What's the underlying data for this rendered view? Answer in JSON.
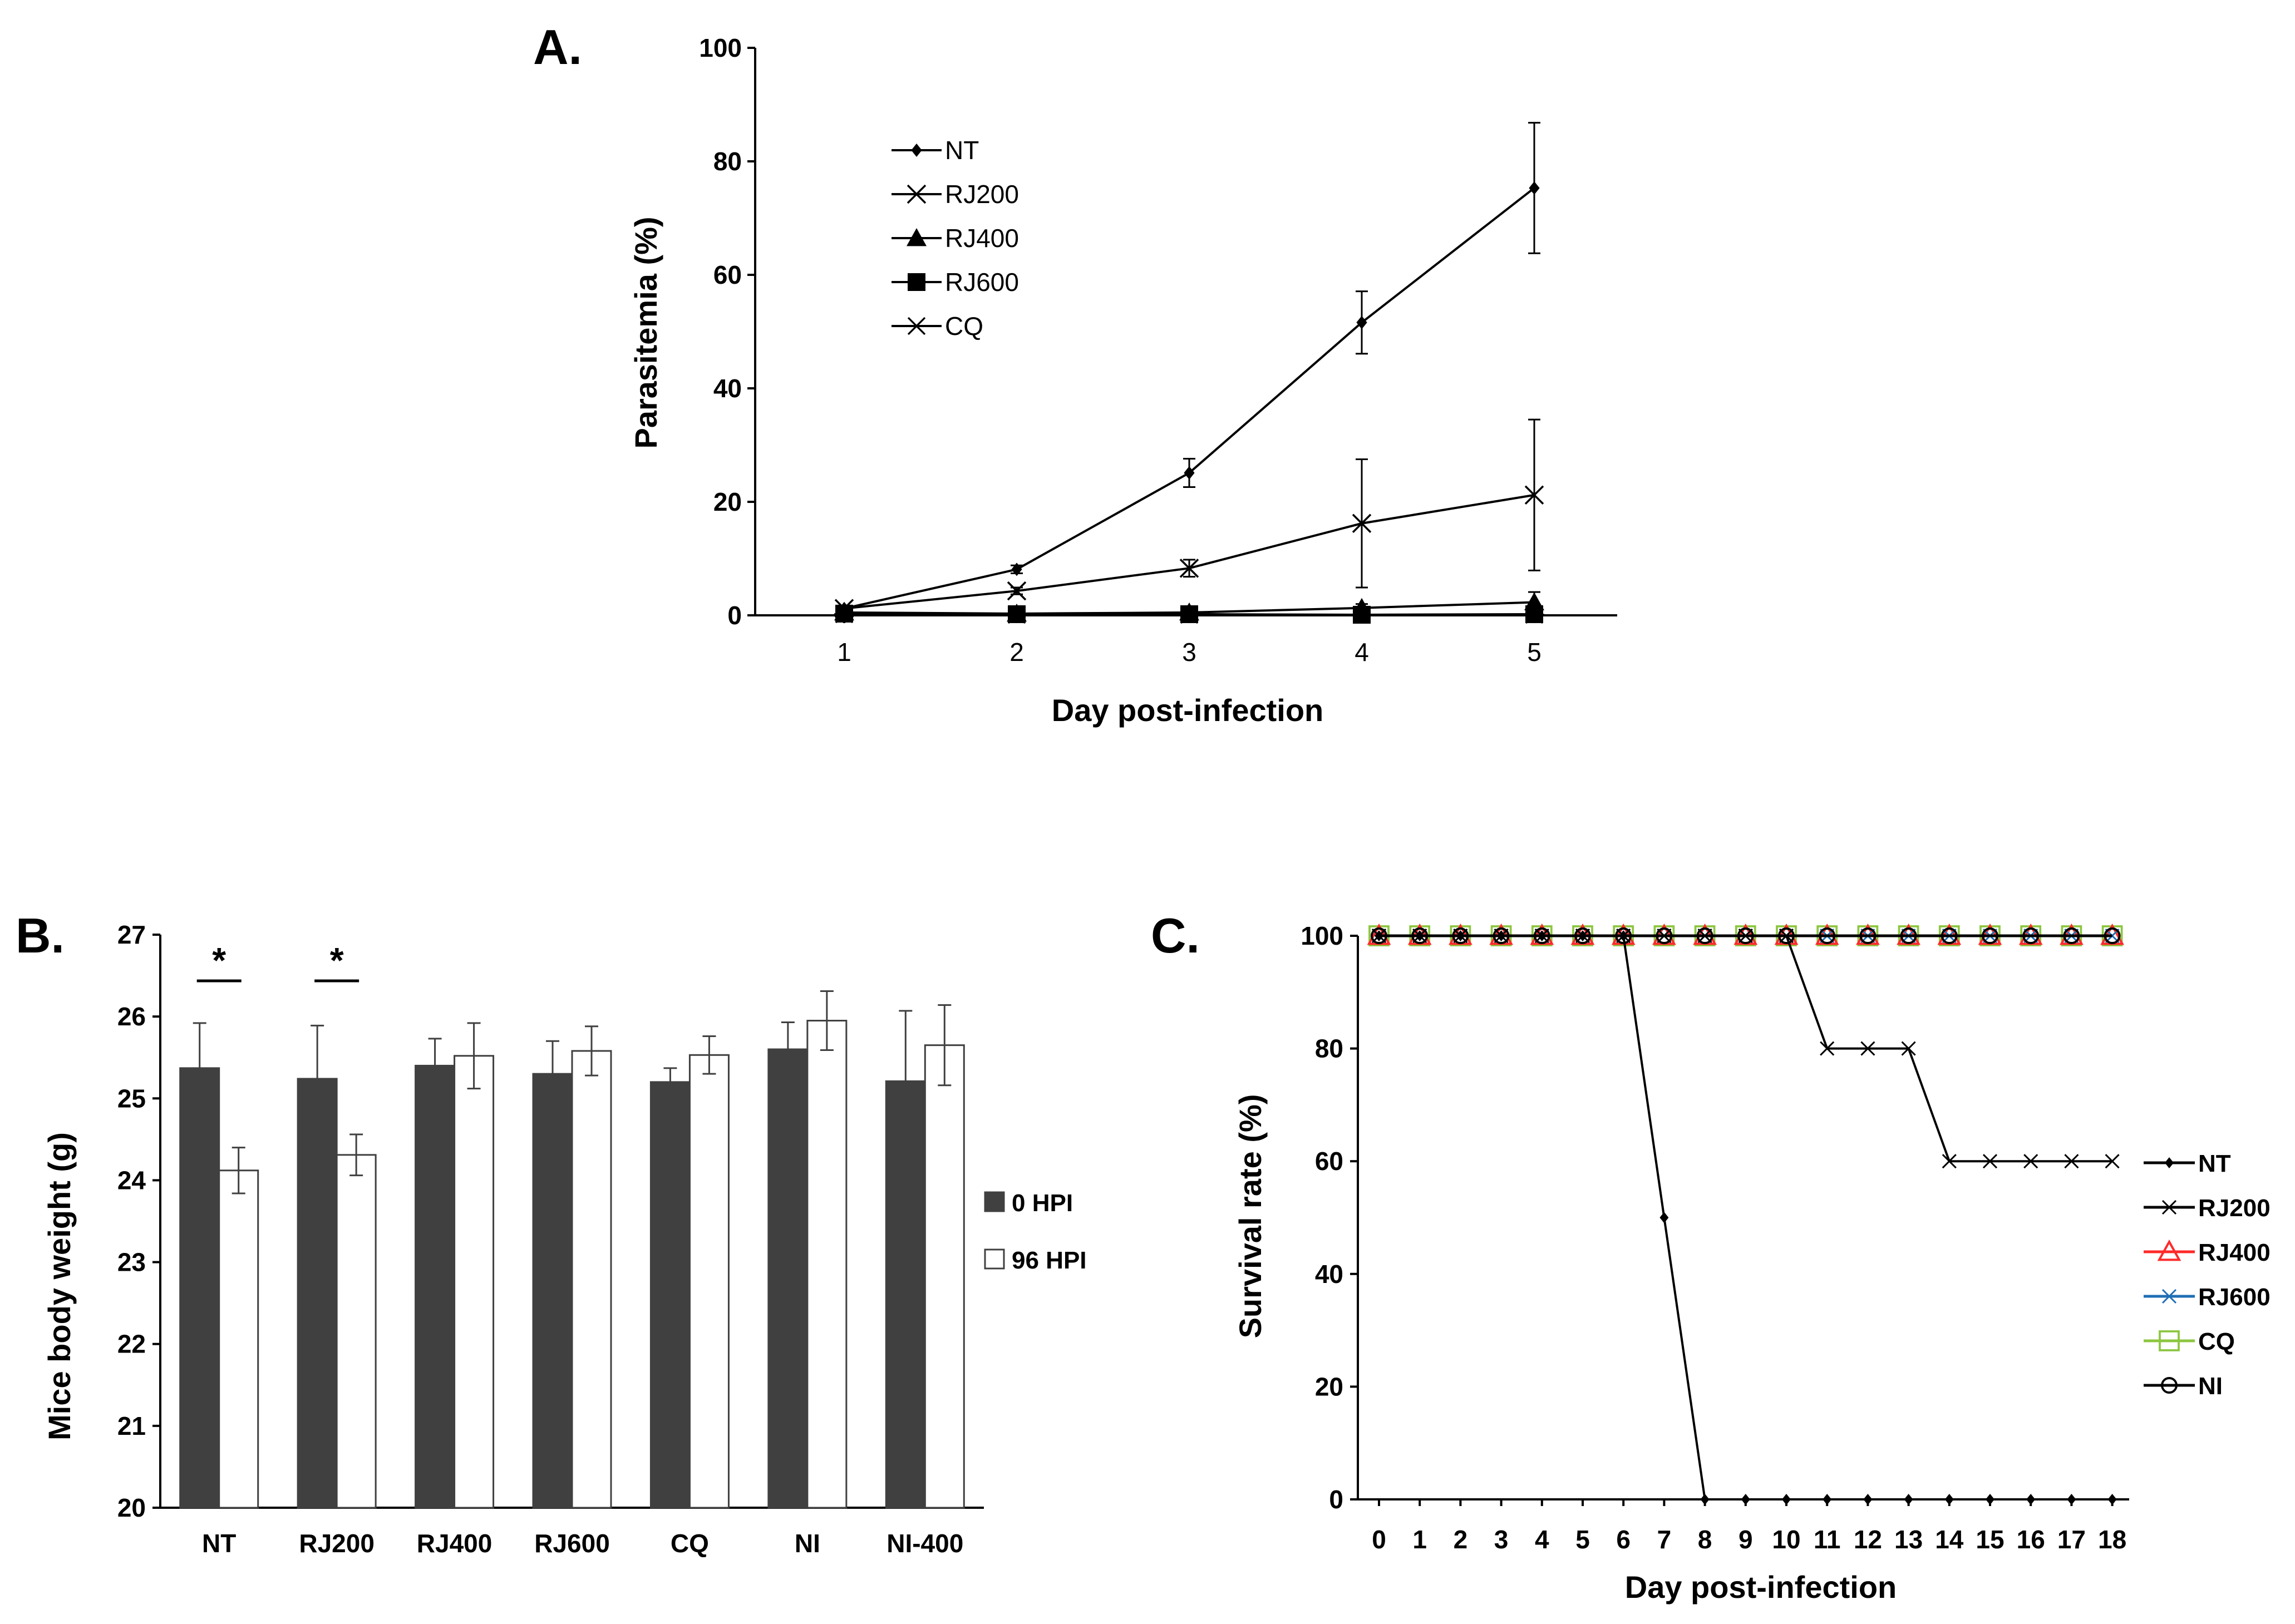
{
  "chart_data": [
    {
      "id": "A",
      "panel_label": "A.",
      "type": "line",
      "xlabel": "Day post-infection",
      "ylabel": "Parasitemia (%)",
      "x": [
        1,
        2,
        3,
        4,
        5
      ],
      "x_tick_labels": [
        "1",
        "2",
        "3",
        "4",
        "5"
      ],
      "ylim": [
        0,
        100
      ],
      "y_ticks": [
        0,
        20,
        40,
        60,
        80,
        100
      ],
      "y_tick_labels": [
        "0",
        "20",
        "40",
        "60",
        "80",
        "100"
      ],
      "legend_position": "top-left",
      "series": [
        {
          "name": "NT",
          "marker": "diamond",
          "values": [
            1.2,
            8.1,
            25.1,
            51.6,
            75.3
          ],
          "errors": [
            0.4,
            0.7,
            2.5,
            5.5,
            11.5
          ]
        },
        {
          "name": "RJ200",
          "marker": "x",
          "values": [
            1.2,
            4.3,
            8.3,
            16.2,
            21.2
          ],
          "errors": [
            0.3,
            0.6,
            1.5,
            11.3,
            13.3
          ]
        },
        {
          "name": "RJ400",
          "marker": "triangle",
          "values": [
            0.5,
            0.3,
            0.5,
            1.3,
            2.3
          ],
          "errors": [
            0.2,
            0.2,
            0.4,
            0.7,
            1.8
          ]
        },
        {
          "name": "RJ600",
          "marker": "square",
          "values": [
            0.3,
            0.2,
            0.2,
            0.1,
            0.2
          ],
          "errors": [
            0.2,
            0.2,
            0.3,
            0.2,
            0.2
          ]
        },
        {
          "name": "CQ",
          "marker": "asterisk",
          "values": [
            0.2,
            0.1,
            0.1,
            0.1,
            0.1
          ],
          "errors": [
            0.1,
            0.1,
            0.1,
            0.1,
            0.1
          ]
        }
      ]
    },
    {
      "id": "B",
      "panel_label": "B.",
      "type": "bar",
      "xlabel": "",
      "ylabel": "Mice body weight (g)",
      "categories": [
        "NT",
        "RJ200",
        "RJ400",
        "RJ600",
        "CQ",
        "NI",
        "NI-400"
      ],
      "ylim": [
        20,
        27
      ],
      "y_ticks": [
        20,
        21,
        22,
        23,
        24,
        25,
        26,
        27
      ],
      "y_tick_labels": [
        "20",
        "21",
        "22",
        "23",
        "24",
        "25",
        "26",
        "27"
      ],
      "legend_position": "right",
      "series": [
        {
          "name": "0 HPI",
          "color": "#404040",
          "values": [
            25.37,
            25.24,
            25.4,
            25.3,
            25.2,
            25.6,
            25.21
          ],
          "errors": [
            0.55,
            0.65,
            0.33,
            0.4,
            0.17,
            0.33,
            0.86
          ]
        },
        {
          "name": "96 HPI",
          "color": "#ffffff",
          "values": [
            24.12,
            24.31,
            25.52,
            25.58,
            25.53,
            25.95,
            25.65
          ],
          "errors": [
            0.28,
            0.25,
            0.4,
            0.3,
            0.23,
            0.36,
            0.49
          ]
        }
      ],
      "significance": [
        {
          "category": "NT",
          "label": "*"
        },
        {
          "category": "RJ200",
          "label": "*"
        }
      ]
    },
    {
      "id": "C",
      "panel_label": "C.",
      "type": "line",
      "xlabel": "Day post-infection",
      "ylabel": "Survival rate (%)",
      "x": [
        0,
        1,
        2,
        3,
        4,
        5,
        6,
        7,
        8,
        9,
        10,
        11,
        12,
        13,
        14,
        15,
        16,
        17,
        18
      ],
      "x_tick_labels": [
        "0",
        "1",
        "2",
        "3",
        "4",
        "5",
        "6",
        "7",
        "8",
        "9",
        "10",
        "11",
        "12",
        "13",
        "14",
        "15",
        "16",
        "17",
        "18"
      ],
      "ylim": [
        0,
        100
      ],
      "y_ticks": [
        0,
        20,
        40,
        60,
        80,
        100
      ],
      "y_tick_labels": [
        "0",
        "20",
        "40",
        "60",
        "80",
        "100"
      ],
      "legend_position": "right",
      "series": [
        {
          "name": "NT",
          "color": "#000000",
          "marker": "diamond",
          "values": [
            100,
            100,
            100,
            100,
            100,
            100,
            100,
            50,
            0,
            0,
            0,
            0,
            0,
            0,
            0,
            0,
            0,
            0,
            0
          ]
        },
        {
          "name": "RJ200",
          "color": "#000000",
          "marker": "x",
          "values": [
            100,
            100,
            100,
            100,
            100,
            100,
            100,
            100,
            100,
            100,
            100,
            80,
            80,
            80,
            60,
            60,
            60,
            60,
            60
          ]
        },
        {
          "name": "RJ400",
          "color": "#ff2a2a",
          "marker": "open-triangle",
          "values": [
            100,
            100,
            100,
            100,
            100,
            100,
            100,
            100,
            100,
            100,
            100,
            100,
            100,
            100,
            100,
            100,
            100,
            100,
            100
          ]
        },
        {
          "name": "RJ600",
          "color": "#1f6eb5",
          "marker": "x",
          "values": [
            100,
            100,
            100,
            100,
            100,
            100,
            100,
            100,
            100,
            100,
            100,
            100,
            100,
            100,
            100,
            100,
            100,
            100,
            100
          ]
        },
        {
          "name": "CQ",
          "color": "#8cc63f",
          "marker": "open-square",
          "values": [
            100,
            100,
            100,
            100,
            100,
            100,
            100,
            100,
            100,
            100,
            100,
            100,
            100,
            100,
            100,
            100,
            100,
            100,
            100
          ]
        },
        {
          "name": "NI",
          "color": "#000000",
          "marker": "open-circle",
          "values": [
            100,
            100,
            100,
            100,
            100,
            100,
            100,
            100,
            100,
            100,
            100,
            100,
            100,
            100,
            100,
            100,
            100,
            100,
            100
          ]
        }
      ]
    }
  ]
}
